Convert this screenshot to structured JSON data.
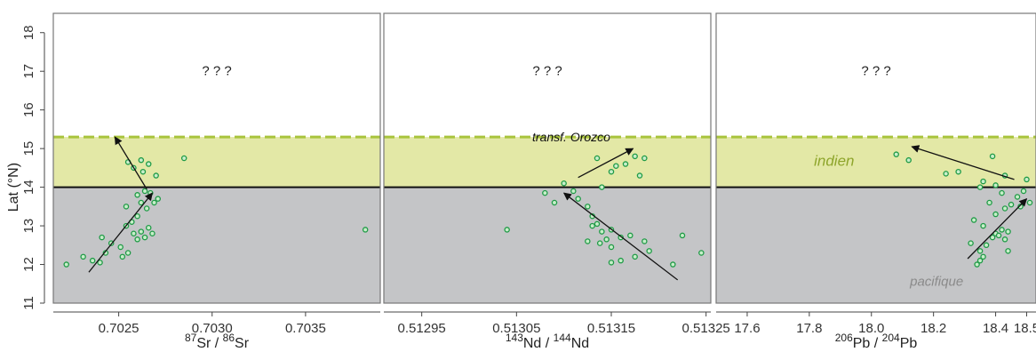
{
  "chart_data": [
    {
      "type": "scatter",
      "panel": "Sr",
      "ylabel": "Lat (°N)",
      "xlabel_parts": [
        "87",
        "Sr",
        " / ",
        "86",
        "Sr"
      ],
      "xlim": [
        0.70215,
        0.7039
      ],
      "ylim": [
        11,
        18.5
      ],
      "x_ticks": [
        0.7025,
        0.703,
        0.7035
      ],
      "x_tick_labels": [
        "0.7025",
        "0.7030",
        "0.7035"
      ],
      "y_ticks": [
        11,
        12,
        13,
        14,
        15,
        16,
        17,
        18
      ],
      "y_tick_labels": [
        "11",
        "12",
        "13",
        "14",
        "15",
        "16",
        "17",
        "18"
      ],
      "annotation": "? ? ?",
      "points": [
        {
          "x": 0.70222,
          "y": 12.0
        },
        {
          "x": 0.70231,
          "y": 12.2
        },
        {
          "x": 0.70236,
          "y": 12.1
        },
        {
          "x": 0.7024,
          "y": 12.05
        },
        {
          "x": 0.70243,
          "y": 12.3
        },
        {
          "x": 0.70241,
          "y": 12.7
        },
        {
          "x": 0.70246,
          "y": 12.55
        },
        {
          "x": 0.70251,
          "y": 12.45
        },
        {
          "x": 0.70252,
          "y": 12.2
        },
        {
          "x": 0.70255,
          "y": 12.3
        },
        {
          "x": 0.70258,
          "y": 12.8
        },
        {
          "x": 0.7026,
          "y": 12.65
        },
        {
          "x": 0.70262,
          "y": 12.85
        },
        {
          "x": 0.70264,
          "y": 12.7
        },
        {
          "x": 0.70266,
          "y": 12.95
        },
        {
          "x": 0.70268,
          "y": 12.8
        },
        {
          "x": 0.70254,
          "y": 13.0
        },
        {
          "x": 0.70257,
          "y": 13.1
        },
        {
          "x": 0.7026,
          "y": 13.25
        },
        {
          "x": 0.70254,
          "y": 13.5
        },
        {
          "x": 0.70262,
          "y": 13.6
        },
        {
          "x": 0.70265,
          "y": 13.45
        },
        {
          "x": 0.70269,
          "y": 13.6
        },
        {
          "x": 0.70271,
          "y": 13.7
        },
        {
          "x": 0.7026,
          "y": 13.8
        },
        {
          "x": 0.70264,
          "y": 13.9
        },
        {
          "x": 0.70267,
          "y": 13.85
        },
        {
          "x": 0.7027,
          "y": 14.3
        },
        {
          "x": 0.70263,
          "y": 14.4
        },
        {
          "x": 0.70258,
          "y": 14.5
        },
        {
          "x": 0.70266,
          "y": 14.6
        },
        {
          "x": 0.70255,
          "y": 14.65
        },
        {
          "x": 0.70262,
          "y": 14.7
        },
        {
          "x": 0.70285,
          "y": 14.75
        },
        {
          "x": 0.70382,
          "y": 12.9
        }
      ],
      "arrows": [
        {
          "from": [
            0.70234,
            11.8
          ],
          "to": [
            0.70268,
            13.85
          ]
        },
        {
          "from": [
            0.70265,
            13.95
          ],
          "to": [
            0.70248,
            15.3
          ]
        }
      ]
    },
    {
      "type": "scatter",
      "panel": "Nd",
      "xlabel_parts": [
        "143",
        "Nd",
        " / ",
        "144",
        "Nd"
      ],
      "xlim": [
        0.51291,
        0.513255
      ],
      "ylim": [
        11,
        18.5
      ],
      "x_ticks": [
        0.51295,
        0.51305,
        0.51315,
        0.51325
      ],
      "x_tick_labels": [
        "0.51295",
        "0.51305",
        "0.51315",
        "0.51325"
      ],
      "annotation": "? ? ?",
      "label_orozco": "transf. Orozco",
      "points": [
        {
          "x": 0.51304,
          "y": 12.9
        },
        {
          "x": 0.51308,
          "y": 13.85
        },
        {
          "x": 0.51309,
          "y": 13.6
        },
        {
          "x": 0.5131,
          "y": 14.1
        },
        {
          "x": 0.51311,
          "y": 13.9
        },
        {
          "x": 0.513115,
          "y": 13.7
        },
        {
          "x": 0.513125,
          "y": 13.5
        },
        {
          "x": 0.51313,
          "y": 13.25
        },
        {
          "x": 0.513135,
          "y": 13.05
        },
        {
          "x": 0.51314,
          "y": 12.85
        },
        {
          "x": 0.51315,
          "y": 12.9
        },
        {
          "x": 0.513145,
          "y": 12.65
        },
        {
          "x": 0.513125,
          "y": 12.6
        },
        {
          "x": 0.513138,
          "y": 12.55
        },
        {
          "x": 0.51315,
          "y": 12.45
        },
        {
          "x": 0.51316,
          "y": 12.7
        },
        {
          "x": 0.51317,
          "y": 12.75
        },
        {
          "x": 0.513185,
          "y": 12.6
        },
        {
          "x": 0.513175,
          "y": 12.2
        },
        {
          "x": 0.51316,
          "y": 12.1
        },
        {
          "x": 0.51315,
          "y": 12.05
        },
        {
          "x": 0.51319,
          "y": 12.35
        },
        {
          "x": 0.513215,
          "y": 12.0
        },
        {
          "x": 0.513225,
          "y": 12.75
        },
        {
          "x": 0.513245,
          "y": 12.3
        },
        {
          "x": 0.51314,
          "y": 14.0
        },
        {
          "x": 0.51315,
          "y": 14.4
        },
        {
          "x": 0.513155,
          "y": 14.55
        },
        {
          "x": 0.513135,
          "y": 14.75
        },
        {
          "x": 0.513165,
          "y": 14.6
        },
        {
          "x": 0.513175,
          "y": 14.8
        },
        {
          "x": 0.513185,
          "y": 14.75
        },
        {
          "x": 0.51318,
          "y": 14.3
        },
        {
          "x": 0.51313,
          "y": 13.0
        }
      ],
      "arrows": [
        {
          "from": [
            0.51322,
            11.6
          ],
          "to": [
            0.5131,
            13.85
          ]
        },
        {
          "from": [
            0.513115,
            14.25
          ],
          "to": [
            0.513173,
            15.0
          ]
        }
      ]
    },
    {
      "type": "scatter",
      "panel": "Pb",
      "xlabel_parts": [
        "206",
        "Pb",
        " / ",
        "204",
        "Pb"
      ],
      "xlim": [
        17.5,
        18.53
      ],
      "ylim": [
        11,
        18.5
      ],
      "x_ticks": [
        17.6,
        17.8,
        18.0,
        18.2,
        18.4,
        18.5
      ],
      "x_tick_labels": [
        "17.6",
        "17.8",
        "18.0",
        "18.2",
        "18.4",
        "18.5"
      ],
      "annotation": "? ? ?",
      "label_indien": "indien",
      "label_pacifique": "pacifique",
      "points": [
        {
          "x": 18.34,
          "y": 12.0
        },
        {
          "x": 18.35,
          "y": 12.1
        },
        {
          "x": 18.36,
          "y": 12.2
        },
        {
          "x": 18.35,
          "y": 12.35
        },
        {
          "x": 18.37,
          "y": 12.5
        },
        {
          "x": 18.32,
          "y": 12.55
        },
        {
          "x": 18.39,
          "y": 12.7
        },
        {
          "x": 18.4,
          "y": 12.8
        },
        {
          "x": 18.41,
          "y": 12.75
        },
        {
          "x": 18.42,
          "y": 12.9
        },
        {
          "x": 18.44,
          "y": 12.85
        },
        {
          "x": 18.43,
          "y": 12.65
        },
        {
          "x": 18.44,
          "y": 12.35
        },
        {
          "x": 18.36,
          "y": 13.0
        },
        {
          "x": 18.33,
          "y": 13.15
        },
        {
          "x": 18.4,
          "y": 13.3
        },
        {
          "x": 18.43,
          "y": 13.45
        },
        {
          "x": 18.45,
          "y": 13.55
        },
        {
          "x": 18.38,
          "y": 13.6
        },
        {
          "x": 18.48,
          "y": 13.5
        },
        {
          "x": 18.51,
          "y": 13.6
        },
        {
          "x": 18.47,
          "y": 13.75
        },
        {
          "x": 18.42,
          "y": 13.85
        },
        {
          "x": 18.49,
          "y": 13.9
        },
        {
          "x": 18.5,
          "y": 14.2
        },
        {
          "x": 18.4,
          "y": 14.05
        },
        {
          "x": 18.36,
          "y": 14.15
        },
        {
          "x": 18.35,
          "y": 14.0
        },
        {
          "x": 18.28,
          "y": 14.4
        },
        {
          "x": 18.24,
          "y": 14.35
        },
        {
          "x": 18.43,
          "y": 14.3
        },
        {
          "x": 18.39,
          "y": 14.8
        },
        {
          "x": 18.12,
          "y": 14.7
        },
        {
          "x": 18.08,
          "y": 14.85
        }
      ],
      "arrows": [
        {
          "from": [
            18.31,
            12.15
          ],
          "to": [
            18.5,
            13.7
          ]
        },
        {
          "from": [
            18.46,
            14.2
          ],
          "to": [
            18.13,
            15.05
          ]
        }
      ]
    }
  ],
  "boundaries": {
    "solid_lat": 14.0,
    "dashed_lat": 15.3
  },
  "colors": {
    "pacific_fill": "#c4c5c7",
    "indian_fill": "#e3e8a6",
    "dash_line": "#a9c43c",
    "point_stroke": "#1f9a46",
    "point_fill": "#c7eec9",
    "indien_text": "#8ea52b",
    "pacifique_text": "#8a8a8a",
    "frame": "#777777",
    "axis": "#444444"
  }
}
